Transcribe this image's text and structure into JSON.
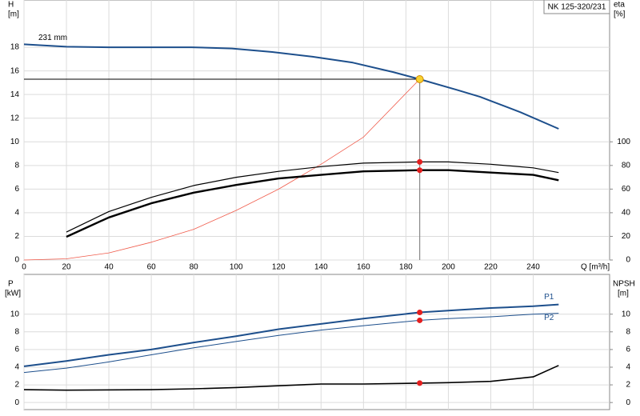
{
  "chart_data": [
    {
      "type": "line",
      "title": "NK 125-320/231",
      "ylabel": "H",
      "yunit": "[m]",
      "y2label": "eta",
      "y2unit": "[%]",
      "xlabel": "Q [m³/h]",
      "xlim": [
        0,
        276
      ],
      "xticks": [
        0,
        20,
        40,
        60,
        80,
        100,
        120,
        140,
        160,
        180,
        200,
        220,
        240
      ],
      "ylim": [
        0,
        22
      ],
      "yticks": [
        0,
        2,
        4,
        6,
        8,
        10,
        12,
        14,
        16,
        18
      ],
      "y2lim": [
        0,
        220
      ],
      "y2ticks": [
        0,
        20,
        40,
        60,
        80,
        100
      ],
      "grid": true,
      "duty_point": {
        "x": 186.5,
        "y": 15.3,
        "color": "#f7d230",
        "dot_color": "#e41e1e"
      },
      "series": [
        {
          "name": "231 mm",
          "color": "#1d4f8c",
          "line_width": 2,
          "x": [
            0,
            20,
            40,
            79,
            98,
            117,
            136,
            155,
            174,
            186.5,
            204,
            215,
            234,
            252
          ],
          "values": [
            18.25,
            18.05,
            18.0,
            18.0,
            17.9,
            17.6,
            17.2,
            16.7,
            15.9,
            15.3,
            14.4,
            13.8,
            12.5,
            11.1
          ]
        },
        {
          "color": "#f05a4a",
          "line_width": 0.8,
          "x": [
            0,
            20,
            40,
            60,
            80,
            100,
            120,
            140,
            160,
            186.5
          ],
          "values": [
            0,
            0.1,
            0.6,
            1.5,
            2.6,
            4.2,
            6.0,
            8.1,
            10.4,
            15.3
          ]
        },
        {
          "color": "#000000",
          "line_width": 1.2,
          "axis": "y2",
          "x": [
            20,
            40,
            60,
            80,
            100,
            120,
            140,
            160,
            186.5,
            200,
            220,
            240,
            252
          ],
          "values": [
            23.6,
            41,
            53,
            63,
            70,
            75,
            79,
            82,
            83,
            83,
            81,
            78,
            74
          ]
        },
        {
          "color": "#000000",
          "line_width": 2.4,
          "axis": "y2",
          "x": [
            20,
            40,
            60,
            80,
            100,
            120,
            140,
            160,
            186.5,
            200,
            220,
            240,
            252
          ],
          "values": [
            19.6,
            36,
            48,
            57,
            63.5,
            69,
            72,
            75,
            76,
            76,
            74,
            72,
            67.5
          ]
        }
      ]
    },
    {
      "type": "line",
      "ylabel": "P",
      "yunit": "[kW]",
      "y2label": "NPSH",
      "y2unit": "[m]",
      "xlim": [
        0,
        276
      ],
      "xticks": [
        0,
        20,
        40,
        60,
        80,
        100,
        120,
        140,
        160,
        180,
        200,
        220,
        240
      ],
      "ylim": [
        -0.8,
        14.5
      ],
      "yticks": [
        0,
        2,
        4,
        6,
        8,
        10
      ],
      "y2lim": [
        -0.8,
        14.5
      ],
      "y2ticks": [
        0,
        2,
        4,
        6,
        8,
        10
      ],
      "grid": true,
      "series": [
        {
          "name": "P1",
          "color": "#1d4f8c",
          "line_width": 2,
          "x": [
            0,
            20,
            40,
            60,
            80,
            100,
            120,
            140,
            160,
            186.5,
            200,
            220,
            240,
            252
          ],
          "values": [
            4.1,
            4.7,
            5.4,
            6.0,
            6.8,
            7.5,
            8.3,
            8.9,
            9.5,
            10.2,
            10.4,
            10.7,
            10.9,
            11.1
          ]
        },
        {
          "name": "P2",
          "color": "#1d4f8c",
          "line_width": 1,
          "x": [
            0,
            20,
            40,
            60,
            80,
            100,
            120,
            140,
            160,
            186.5,
            200,
            220,
            240,
            252
          ],
          "values": [
            3.4,
            3.9,
            4.6,
            5.4,
            6.2,
            6.9,
            7.6,
            8.2,
            8.7,
            9.3,
            9.5,
            9.7,
            10.0,
            10.1
          ]
        },
        {
          "color": "#000000",
          "line_width": 1.6,
          "axis": "y2",
          "x": [
            0,
            20,
            60,
            80,
            100,
            120,
            140,
            160,
            186.5,
            200,
            220,
            240,
            252
          ],
          "values": [
            1.45,
            1.4,
            1.45,
            1.55,
            1.7,
            1.9,
            2.1,
            2.1,
            2.2,
            2.25,
            2.4,
            2.9,
            4.2
          ]
        }
      ]
    }
  ]
}
